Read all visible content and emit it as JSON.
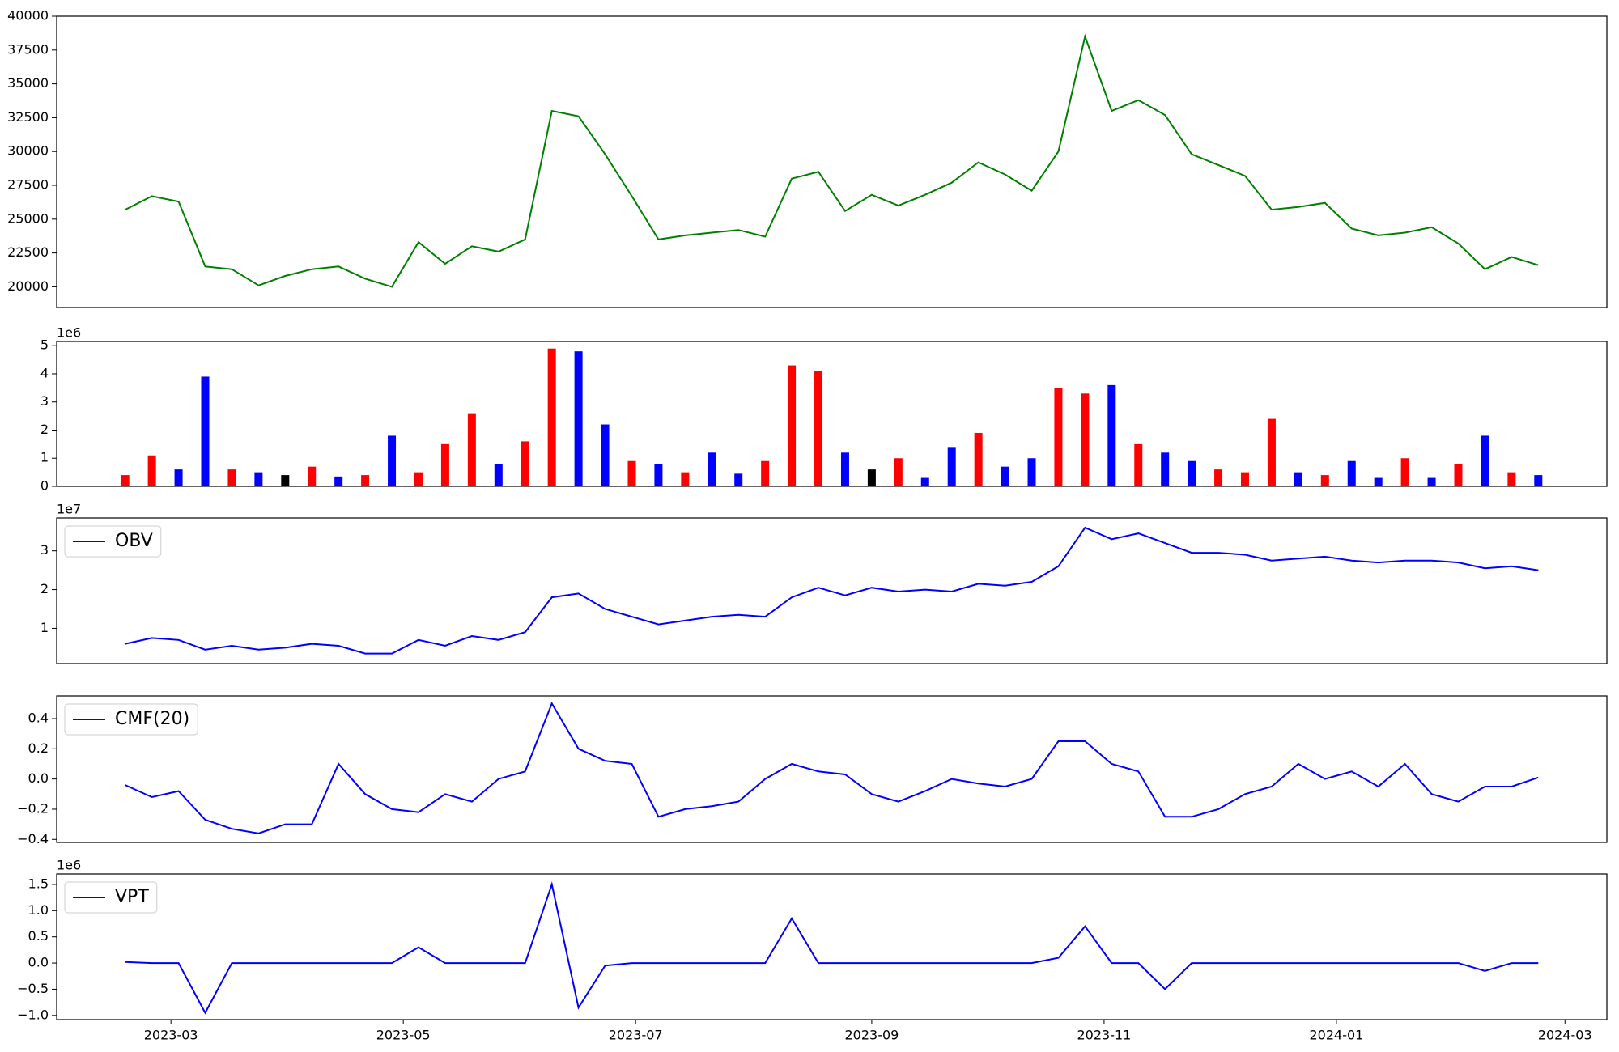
{
  "chart_data": [
    {
      "type": "line",
      "x": [
        "2023-02-17",
        "2023-02-24",
        "2023-03-03",
        "2023-03-10",
        "2023-03-17",
        "2023-03-24",
        "2023-03-31",
        "2023-04-07",
        "2023-04-14",
        "2023-04-21",
        "2023-04-28",
        "2023-05-05",
        "2023-05-12",
        "2023-05-19",
        "2023-05-26",
        "2023-06-02",
        "2023-06-09",
        "2023-06-16",
        "2023-06-23",
        "2023-06-30",
        "2023-07-07",
        "2023-07-14",
        "2023-07-21",
        "2023-07-28",
        "2023-08-04",
        "2023-08-11",
        "2023-08-18",
        "2023-08-25",
        "2023-09-01",
        "2023-09-08",
        "2023-09-15",
        "2023-09-22",
        "2023-09-29",
        "2023-10-06",
        "2023-10-13",
        "2023-10-20",
        "2023-10-27",
        "2023-11-03",
        "2023-11-10",
        "2023-11-17",
        "2023-11-24",
        "2023-12-01",
        "2023-12-08",
        "2023-12-15",
        "2023-12-22",
        "2023-12-29",
        "2024-01-05",
        "2024-01-12",
        "2024-01-19",
        "2024-01-26",
        "2024-02-02",
        "2024-02-09",
        "2024-02-16",
        "2024-02-23"
      ],
      "series": [
        {
          "color": "#008000",
          "values": [
            25700,
            26700,
            26300,
            21500,
            21300,
            20100,
            20800,
            21300,
            21500,
            20600,
            20000,
            23300,
            21700,
            23000,
            22600,
            23500,
            33000,
            32600,
            29800,
            26700,
            23500,
            23800,
            24000,
            24200,
            23700,
            28000,
            28500,
            25600,
            26800,
            26000,
            26800,
            27700,
            29200,
            28300,
            27100,
            30000,
            38500,
            33000,
            33800,
            32700,
            29800,
            29000,
            28200,
            25700,
            25900,
            26200,
            24300,
            23800,
            24000,
            24400,
            23200,
            21300,
            22200,
            21600
          ]
        }
      ],
      "xlim": [
        "2023-01-30",
        "2024-03-12"
      ],
      "ylim": [
        18470,
        40000
      ],
      "yticks": [
        20000,
        22500,
        25000,
        27500,
        30000,
        32500,
        35000,
        37500,
        40000
      ]
    },
    {
      "type": "bar",
      "x": [
        "2023-02-17",
        "2023-02-24",
        "2023-03-03",
        "2023-03-10",
        "2023-03-17",
        "2023-03-24",
        "2023-03-31",
        "2023-04-07",
        "2023-04-14",
        "2023-04-21",
        "2023-04-28",
        "2023-05-05",
        "2023-05-12",
        "2023-05-19",
        "2023-05-26",
        "2023-06-02",
        "2023-06-09",
        "2023-06-16",
        "2023-06-23",
        "2023-06-30",
        "2023-07-07",
        "2023-07-14",
        "2023-07-21",
        "2023-07-28",
        "2023-08-04",
        "2023-08-11",
        "2023-08-18",
        "2023-08-25",
        "2023-09-01",
        "2023-09-08",
        "2023-09-15",
        "2023-09-22",
        "2023-09-29",
        "2023-10-06",
        "2023-10-13",
        "2023-10-20",
        "2023-10-27",
        "2023-11-03",
        "2023-11-10",
        "2023-11-17",
        "2023-11-24",
        "2023-12-01",
        "2023-12-08",
        "2023-12-15",
        "2023-12-22",
        "2023-12-29",
        "2024-01-05",
        "2024-01-12",
        "2024-01-19",
        "2024-01-26",
        "2024-02-02",
        "2024-02-09",
        "2024-02-16",
        "2024-02-23"
      ],
      "values": [
        400000,
        1100000,
        600000,
        3900000,
        600000,
        500000,
        400000,
        700000,
        350000,
        400000,
        1800000,
        500000,
        1500000,
        2600000,
        800000,
        1600000,
        4900000,
        4800000,
        2200000,
        900000,
        800000,
        500000,
        1200000,
        450000,
        900000,
        4300000,
        4100000,
        1200000,
        600000,
        1000000,
        300000,
        1400000,
        1900000,
        700000,
        1000000,
        3500000,
        3300000,
        3600000,
        1500000,
        1200000,
        900000,
        600000,
        500000,
        2400000,
        500000,
        400000,
        900000,
        300000,
        1000000,
        300000,
        800000,
        1800000,
        500000,
        400000
      ],
      "colors": [
        "red",
        "red",
        "blue",
        "blue",
        "red",
        "blue",
        "black",
        "red",
        "blue",
        "red",
        "blue",
        "red",
        "red",
        "red",
        "blue",
        "red",
        "red",
        "blue",
        "blue",
        "red",
        "blue",
        "red",
        "blue",
        "blue",
        "red",
        "red",
        "red",
        "blue",
        "black",
        "red",
        "blue",
        "blue",
        "red",
        "blue",
        "blue",
        "red",
        "red",
        "blue",
        "red",
        "blue",
        "blue",
        "red",
        "red",
        "red",
        "blue",
        "red",
        "blue",
        "blue",
        "red",
        "blue",
        "red",
        "blue",
        "red",
        "blue"
      ],
      "xlim": [
        "2023-01-30",
        "2024-03-12"
      ],
      "ylim": [
        0,
        5150000
      ],
      "yticks": [
        0,
        {
          "value": 1000000,
          "label": "1"
        },
        {
          "value": 2000000,
          "label": "2"
        },
        {
          "value": 3000000,
          "label": "3"
        },
        {
          "value": 4000000,
          "label": "4"
        },
        {
          "value": 5000000,
          "label": "5"
        }
      ],
      "y_offset_label": "1e6"
    },
    {
      "type": "line",
      "x": [
        "2023-02-17",
        "2023-02-24",
        "2023-03-03",
        "2023-03-10",
        "2023-03-17",
        "2023-03-24",
        "2023-03-31",
        "2023-04-07",
        "2023-04-14",
        "2023-04-21",
        "2023-04-28",
        "2023-05-05",
        "2023-05-12",
        "2023-05-19",
        "2023-05-26",
        "2023-06-02",
        "2023-06-09",
        "2023-06-16",
        "2023-06-23",
        "2023-06-30",
        "2023-07-07",
        "2023-07-14",
        "2023-07-21",
        "2023-07-28",
        "2023-08-04",
        "2023-08-11",
        "2023-08-18",
        "2023-08-25",
        "2023-09-01",
        "2023-09-08",
        "2023-09-15",
        "2023-09-22",
        "2023-09-29",
        "2023-10-06",
        "2023-10-13",
        "2023-10-20",
        "2023-10-27",
        "2023-11-03",
        "2023-11-10",
        "2023-11-17",
        "2023-11-24",
        "2023-12-01",
        "2023-12-08",
        "2023-12-15",
        "2023-12-22",
        "2023-12-29",
        "2024-01-05",
        "2024-01-12",
        "2024-01-19",
        "2024-01-26",
        "2024-02-02",
        "2024-02-09",
        "2024-02-16",
        "2024-02-23"
      ],
      "series": [
        {
          "name": "OBV",
          "color": "#0000ff",
          "values": [
            6000000,
            7500000,
            7000000,
            4500000,
            5500000,
            4500000,
            5000000,
            6000000,
            5500000,
            3500000,
            3500000,
            7000000,
            5500000,
            8000000,
            7000000,
            9000000,
            18000000,
            19000000,
            15000000,
            13000000,
            11000000,
            12000000,
            13000000,
            13500000,
            13000000,
            18000000,
            20500000,
            18500000,
            20500000,
            19500000,
            20000000,
            19500000,
            21500000,
            21000000,
            22000000,
            26000000,
            36000000,
            33000000,
            34500000,
            32000000,
            29500000,
            29500000,
            29000000,
            27500000,
            28000000,
            28500000,
            27500000,
            27000000,
            27500000,
            27500000,
            27000000,
            25500000,
            26000000,
            25000000
          ]
        }
      ],
      "xlim": [
        "2023-01-30",
        "2024-03-12"
      ],
      "ylim": [
        900000,
        38500000
      ],
      "yticks": [
        {
          "value": 10000000,
          "label": "1"
        },
        {
          "value": 20000000,
          "label": "2"
        },
        {
          "value": 30000000,
          "label": "3"
        }
      ],
      "y_offset_label": "1e7",
      "legend": "upper left"
    },
    {
      "type": "line",
      "x": [
        "2023-02-17",
        "2023-02-24",
        "2023-03-03",
        "2023-03-10",
        "2023-03-17",
        "2023-03-24",
        "2023-03-31",
        "2023-04-07",
        "2023-04-14",
        "2023-04-21",
        "2023-04-28",
        "2023-05-05",
        "2023-05-12",
        "2023-05-19",
        "2023-05-26",
        "2023-06-02",
        "2023-06-09",
        "2023-06-16",
        "2023-06-23",
        "2023-06-30",
        "2023-07-07",
        "2023-07-14",
        "2023-07-21",
        "2023-07-28",
        "2023-08-04",
        "2023-08-11",
        "2023-08-18",
        "2023-08-25",
        "2023-09-01",
        "2023-09-08",
        "2023-09-15",
        "2023-09-22",
        "2023-09-29",
        "2023-10-06",
        "2023-10-13",
        "2023-10-20",
        "2023-10-27",
        "2023-11-03",
        "2023-11-10",
        "2023-11-17",
        "2023-11-24",
        "2023-12-01",
        "2023-12-08",
        "2023-12-15",
        "2023-12-22",
        "2023-12-29",
        "2024-01-05",
        "2024-01-12",
        "2024-01-19",
        "2024-01-26",
        "2024-02-02",
        "2024-02-09",
        "2024-02-16",
        "2024-02-23"
      ],
      "series": [
        {
          "name": "CMF(20)",
          "color": "#0000ff",
          "values": [
            -0.04,
            -0.12,
            -0.08,
            -0.27,
            -0.33,
            -0.36,
            -0.3,
            -0.3,
            0.1,
            -0.1,
            -0.2,
            -0.22,
            -0.1,
            -0.15,
            0.0,
            0.05,
            0.5,
            0.2,
            0.12,
            0.1,
            -0.25,
            -0.2,
            -0.18,
            -0.15,
            0.0,
            0.1,
            0.05,
            0.03,
            -0.1,
            -0.15,
            -0.08,
            0.0,
            -0.03,
            -0.05,
            0.0,
            0.25,
            0.25,
            0.1,
            0.05,
            -0.25,
            -0.25,
            -0.2,
            -0.1,
            -0.05,
            0.1,
            0.0,
            0.05,
            -0.05,
            0.1,
            -0.1,
            -0.15,
            -0.05,
            -0.05,
            0.01
          ]
        }
      ],
      "xlim": [
        "2023-01-30",
        "2024-03-12"
      ],
      "ylim": [
        -0.42,
        0.55
      ],
      "yticks": [
        {
          "value": -0.4,
          "label": "−0.4"
        },
        {
          "value": -0.2,
          "label": "−0.2"
        },
        {
          "value": 0,
          "label": "0.0"
        },
        0.2,
        0.4
      ],
      "legend": "upper left"
    },
    {
      "type": "line",
      "x": [
        "2023-02-17",
        "2023-02-24",
        "2023-03-03",
        "2023-03-10",
        "2023-03-17",
        "2023-03-24",
        "2023-03-31",
        "2023-04-07",
        "2023-04-14",
        "2023-04-21",
        "2023-04-28",
        "2023-05-05",
        "2023-05-12",
        "2023-05-19",
        "2023-05-26",
        "2023-06-02",
        "2023-06-09",
        "2023-06-16",
        "2023-06-23",
        "2023-06-30",
        "2023-07-07",
        "2023-07-14",
        "2023-07-21",
        "2023-07-28",
        "2023-08-04",
        "2023-08-11",
        "2023-08-18",
        "2023-08-25",
        "2023-09-01",
        "2023-09-08",
        "2023-09-15",
        "2023-09-22",
        "2023-09-29",
        "2023-10-06",
        "2023-10-13",
        "2023-10-20",
        "2023-10-27",
        "2023-11-03",
        "2023-11-10",
        "2023-11-17",
        "2023-11-24",
        "2023-12-01",
        "2023-12-08",
        "2023-12-15",
        "2023-12-22",
        "2023-12-29",
        "2024-01-05",
        "2024-01-12",
        "2024-01-19",
        "2024-01-26",
        "2024-02-02",
        "2024-02-09",
        "2024-02-16",
        "2024-02-23"
      ],
      "series": [
        {
          "name": "VPT",
          "color": "#0000ff",
          "values": [
            20000,
            0,
            0,
            -950000,
            0,
            0,
            0,
            0,
            0,
            0,
            0,
            300000,
            0,
            0,
            0,
            0,
            1500000,
            -850000,
            -50000,
            0,
            0,
            0,
            0,
            0,
            0,
            850000,
            0,
            0,
            0,
            0,
            0,
            0,
            0,
            0,
            0,
            100000,
            700000,
            0,
            0,
            -500000,
            0,
            0,
            0,
            0,
            0,
            0,
            0,
            0,
            0,
            0,
            0,
            -150000,
            0,
            0
          ]
        }
      ],
      "xlim": [
        "2023-01-30",
        "2024-03-12"
      ],
      "ylim": [
        -1080000,
        1700000
      ],
      "yticks": [
        {
          "value": -1000000,
          "label": "−1.0"
        },
        {
          "value": -500000,
          "label": "−0.5"
        },
        {
          "value": 0,
          "label": "0.0"
        },
        {
          "value": 500000,
          "label": "0.5"
        },
        {
          "value": 1000000,
          "label": "1.0"
        },
        {
          "value": 1500000,
          "label": "1.5"
        }
      ],
      "y_offset_label": "1e6",
      "legend": "upper left",
      "xticks": [
        {
          "value": "2023-03-01",
          "label": "2023-03"
        },
        {
          "value": "2023-05-01",
          "label": "2023-05"
        },
        {
          "value": "2023-07-01",
          "label": "2023-07"
        },
        {
          "value": "2023-09-01",
          "label": "2023-09"
        },
        {
          "value": "2023-11-01",
          "label": "2023-11"
        },
        {
          "value": "2024-01-01",
          "label": "2024-01"
        },
        {
          "value": "2024-03-01",
          "label": "2024-03"
        }
      ]
    }
  ]
}
